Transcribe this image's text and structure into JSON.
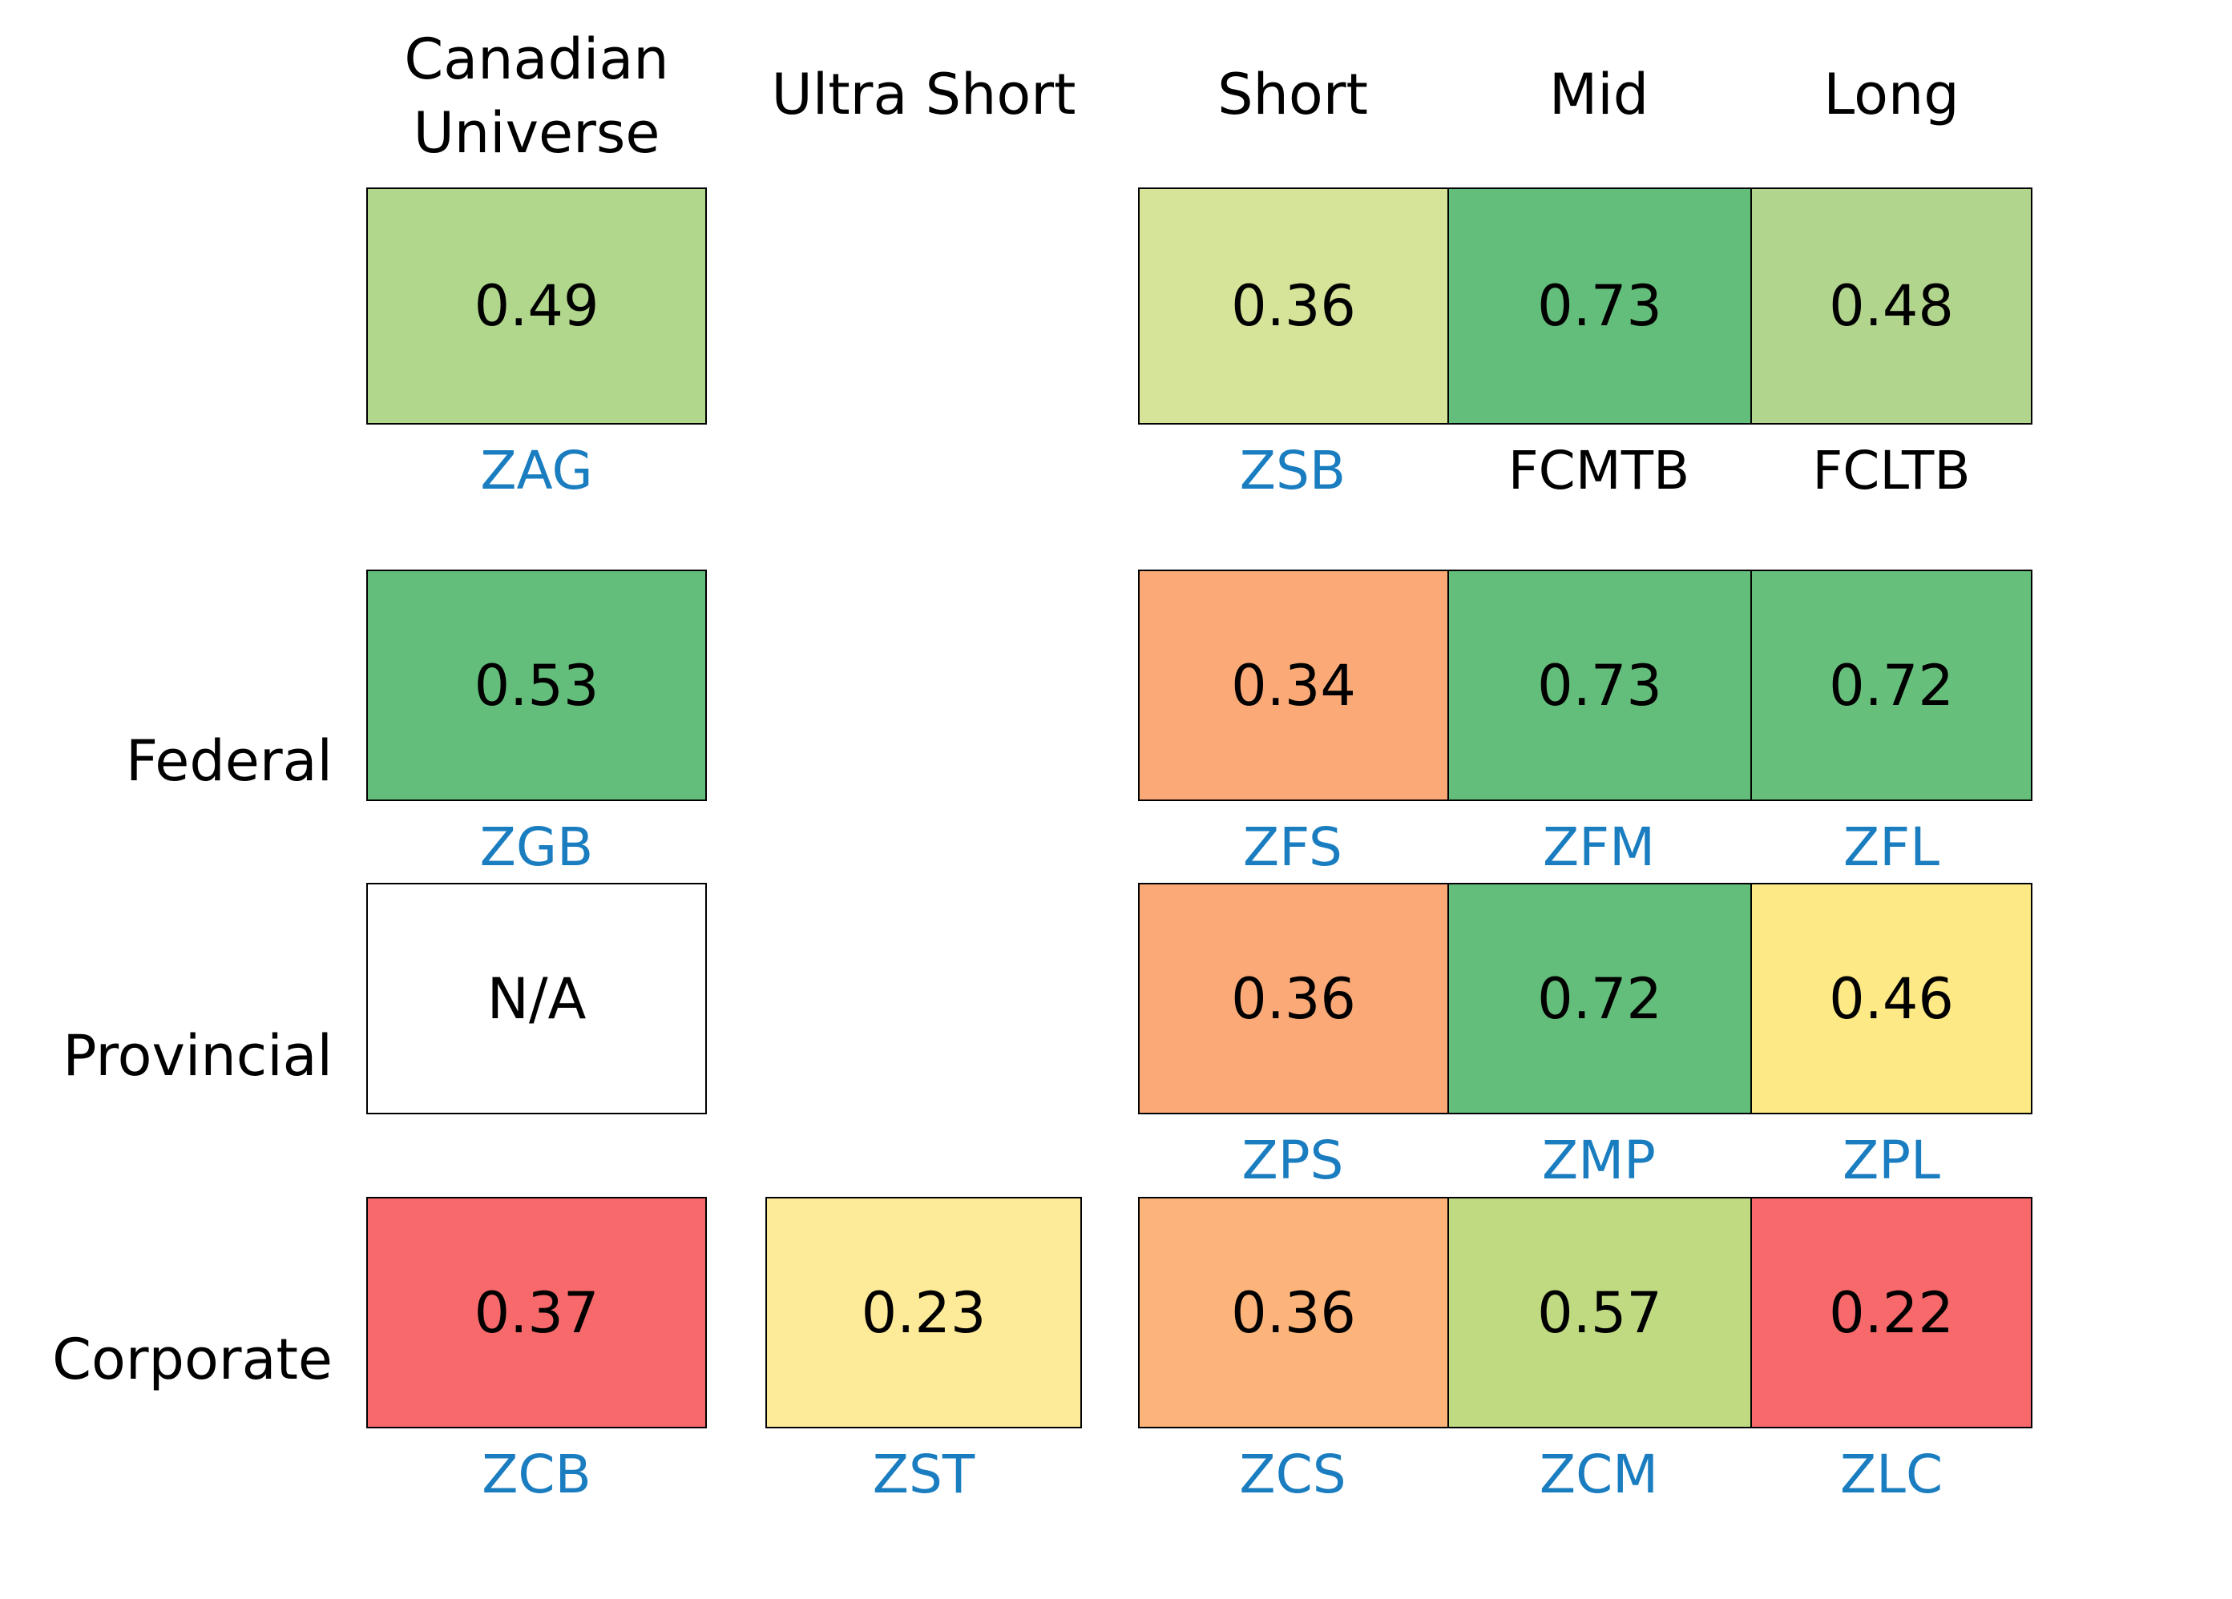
{
  "chart_data": {
    "type": "heatmap",
    "columns": [
      "Canadian\nUniverse",
      "Ultra Short",
      "Short",
      "Mid",
      "Long"
    ],
    "rows": [
      "",
      "Federal",
      "Provincial",
      "Corporate"
    ],
    "cells": [
      [
        {
          "value": "0.49",
          "ticker": "ZAG",
          "color": "#b1d78c",
          "ticker_color": "#1a7dc0"
        },
        null,
        {
          "value": "0.36",
          "ticker": "ZSB",
          "color": "#d5e498",
          "ticker_color": "#1a7dc0"
        },
        {
          "value": "0.73",
          "ticker": "FCMTB",
          "color": "#63be7b",
          "ticker_color": "#000000"
        },
        {
          "value": "0.48",
          "ticker": "FCLTB",
          "color": "#b1d58c",
          "ticker_color": "#000000"
        }
      ],
      [
        {
          "value": "0.53",
          "ticker": "ZGB",
          "color": "#63be7b",
          "ticker_color": "#1a7dc0"
        },
        null,
        {
          "value": "0.34",
          "ticker": "ZFS",
          "color": "#fbaa77",
          "ticker_color": "#1a7dc0"
        },
        {
          "value": "0.73",
          "ticker": "ZFM",
          "color": "#64be7b",
          "ticker_color": "#1a7dc0"
        },
        {
          "value": "0.72",
          "ticker": "ZFL",
          "color": "#67bf7c",
          "ticker_color": "#1a7dc0"
        }
      ],
      [
        {
          "value": "N/A",
          "ticker": "",
          "color": "#ffffff",
          "ticker_color": "#1a7dc0"
        },
        null,
        {
          "value": "0.36",
          "ticker": "ZPS",
          "color": "#fbaa77",
          "ticker_color": "#1a7dc0"
        },
        {
          "value": "0.72",
          "ticker": "ZMP",
          "color": "#63be7b",
          "ticker_color": "#1a7dc0"
        },
        {
          "value": "0.46",
          "ticker": "ZPL",
          "color": "#fde985",
          "ticker_color": "#1a7dc0"
        }
      ],
      [
        {
          "value": "0.37",
          "ticker": "ZCB",
          "color": "#f8696b",
          "ticker_color": "#1a7dc0"
        },
        {
          "value": "0.23",
          "ticker": "ZST",
          "color": "#feeb9a",
          "ticker_color": "#1a7dc0"
        },
        {
          "value": "0.36",
          "ticker": "ZCS",
          "color": "#fcb47b",
          "ticker_color": "#1a7dc0"
        },
        {
          "value": "0.57",
          "ticker": "ZCM",
          "color": "#c0da81",
          "ticker_color": "#1a7dc0"
        },
        {
          "value": "0.22",
          "ticker": "ZLC",
          "color": "#f8696b",
          "ticker_color": "#1a7dc0"
        }
      ]
    ]
  }
}
